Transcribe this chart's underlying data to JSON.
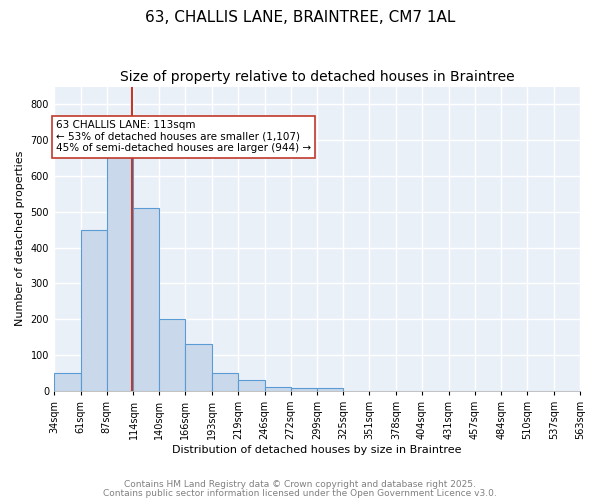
{
  "title1": "63, CHALLIS LANE, BRAINTREE, CM7 1AL",
  "title2": "Size of property relative to detached houses in Braintree",
  "xlabel": "Distribution of detached houses by size in Braintree",
  "ylabel": "Number of detached properties",
  "bin_edges": [
    34,
    61,
    87,
    114,
    140,
    166,
    193,
    219,
    246,
    272,
    299,
    325,
    351,
    378,
    404,
    431,
    457,
    484,
    510,
    537,
    563
  ],
  "bar_heights": [
    50,
    450,
    660,
    510,
    200,
    130,
    50,
    30,
    10,
    8,
    8,
    0,
    0,
    0,
    0,
    0,
    0,
    0,
    0,
    0
  ],
  "bar_color": "#c9d9eb",
  "bar_edge_color": "#5b9bd5",
  "vline_x": 113,
  "vline_color": "#c0392b",
  "annotation_text": "63 CHALLIS LANE: 113sqm\n← 53% of detached houses are smaller (1,107)\n45% of semi-detached houses are larger (944) →",
  "annotation_box_color": "#ffffff",
  "annotation_box_edge": "#c0392b",
  "ylim": [
    0,
    850
  ],
  "yticks": [
    0,
    100,
    200,
    300,
    400,
    500,
    600,
    700,
    800
  ],
  "background_color": "#eaf0f8",
  "grid_color": "#ffffff",
  "footer1": "Contains HM Land Registry data © Crown copyright and database right 2025.",
  "footer2": "Contains public sector information licensed under the Open Government Licence v3.0.",
  "title_fontsize": 11,
  "subtitle_fontsize": 10,
  "axis_label_fontsize": 8,
  "tick_fontsize": 7,
  "annotation_fontsize": 7.5,
  "footer_fontsize": 6.5
}
